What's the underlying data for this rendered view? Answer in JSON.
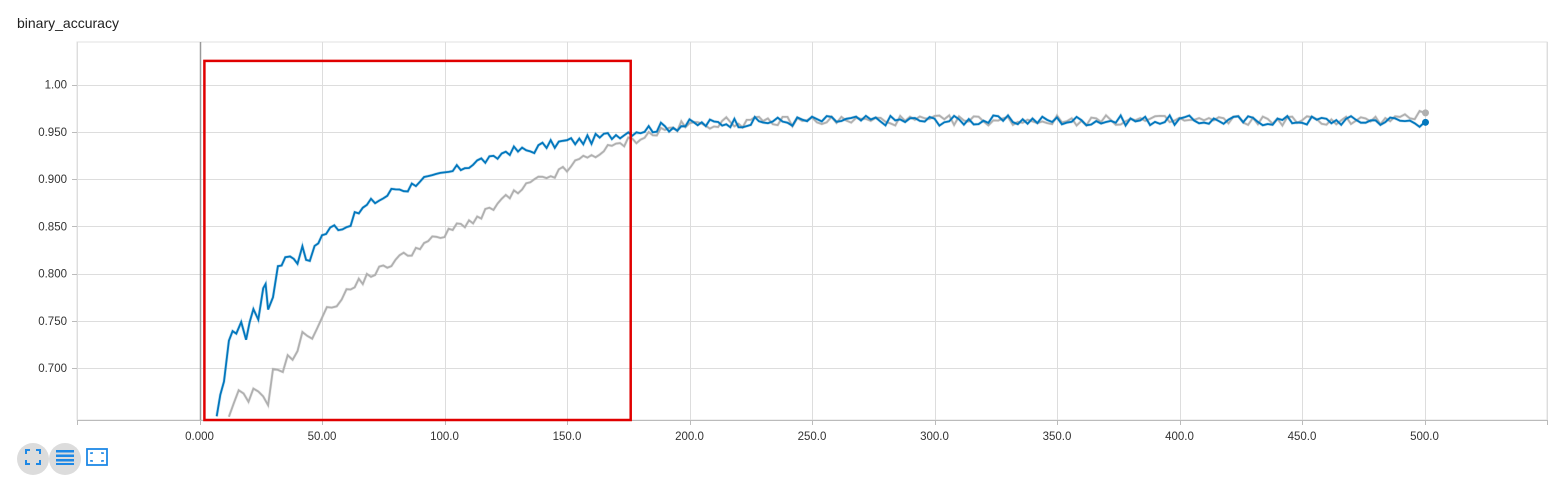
{
  "chart_data": {
    "type": "line",
    "title": "binary_accuracy",
    "xlim": [
      -50,
      550
    ],
    "ylim": [
      0.645,
      1.045
    ],
    "x_ticks": [
      0,
      50,
      100,
      150,
      200,
      250,
      300,
      350,
      400,
      450,
      500
    ],
    "x_tick_labels": [
      "0.000",
      "50.00",
      "100.0",
      "150.0",
      "200.0",
      "250.0",
      "300.0",
      "350.0",
      "400.0",
      "450.0",
      "500.0"
    ],
    "y_ticks": [
      0.7,
      0.75,
      0.8,
      0.85,
      0.9,
      0.95,
      1.0
    ],
    "y_tick_labels": [
      "0.700",
      "0.750",
      "0.800",
      "0.850",
      "0.900",
      "0.950",
      "1.00"
    ],
    "grid": true,
    "legend": "none",
    "series": [
      {
        "color": "#0277bd",
        "points": [
          [
            7,
            0.645
          ],
          [
            10,
            0.69
          ],
          [
            12,
            0.73
          ],
          [
            15,
            0.74
          ],
          [
            17,
            0.75
          ],
          [
            19,
            0.73
          ],
          [
            22,
            0.765
          ],
          [
            24,
            0.755
          ],
          [
            26,
            0.78
          ],
          [
            27,
            0.79
          ],
          [
            28,
            0.765
          ],
          [
            30,
            0.775
          ],
          [
            32,
            0.81
          ],
          [
            35,
            0.815
          ],
          [
            37,
            0.82
          ],
          [
            40,
            0.815
          ],
          [
            42,
            0.825
          ],
          [
            45,
            0.81
          ],
          [
            47,
            0.83
          ],
          [
            50,
            0.84
          ],
          [
            55,
            0.85
          ],
          [
            60,
            0.85
          ],
          [
            65,
            0.865
          ],
          [
            70,
            0.875
          ],
          [
            75,
            0.88
          ],
          [
            80,
            0.89
          ],
          [
            85,
            0.89
          ],
          [
            90,
            0.9
          ],
          [
            95,
            0.9
          ],
          [
            100,
            0.905
          ],
          [
            105,
            0.91
          ],
          [
            110,
            0.915
          ],
          [
            115,
            0.92
          ],
          [
            120,
            0.92
          ],
          [
            125,
            0.93
          ],
          [
            130,
            0.93
          ],
          [
            135,
            0.93
          ],
          [
            140,
            0.935
          ],
          [
            145,
            0.937
          ],
          [
            150,
            0.94
          ],
          [
            155,
            0.94
          ],
          [
            160,
            0.942
          ],
          [
            165,
            0.945
          ],
          [
            170,
            0.947
          ],
          [
            175,
            0.95
          ],
          [
            180,
            0.952
          ],
          [
            185,
            0.954
          ],
          [
            190,
            0.955
          ],
          [
            195,
            0.956
          ],
          [
            200,
            0.958
          ],
          [
            205,
            0.958
          ],
          [
            210,
            0.959
          ],
          [
            215,
            0.96
          ],
          [
            220,
            0.96
          ],
          [
            225,
            0.96
          ],
          [
            230,
            0.961
          ],
          [
            240,
            0.961
          ],
          [
            250,
            0.962
          ],
          [
            260,
            0.962
          ],
          [
            270,
            0.962
          ],
          [
            280,
            0.962
          ],
          [
            290,
            0.962
          ],
          [
            300,
            0.962
          ],
          [
            310,
            0.962
          ],
          [
            320,
            0.962
          ],
          [
            330,
            0.962
          ],
          [
            340,
            0.962
          ],
          [
            350,
            0.962
          ],
          [
            360,
            0.962
          ],
          [
            370,
            0.962
          ],
          [
            380,
            0.962
          ],
          [
            390,
            0.962
          ],
          [
            400,
            0.962
          ],
          [
            410,
            0.962
          ],
          [
            420,
            0.962
          ],
          [
            430,
            0.962
          ],
          [
            440,
            0.962
          ],
          [
            450,
            0.962
          ],
          [
            460,
            0.962
          ],
          [
            470,
            0.962
          ],
          [
            480,
            0.962
          ],
          [
            490,
            0.962
          ],
          [
            500,
            0.96
          ]
        ],
        "end_value": 0.96
      },
      {
        "color": "#b0b0b0",
        "points": [
          [
            12,
            0.645
          ],
          [
            14,
            0.66
          ],
          [
            16,
            0.672
          ],
          [
            18,
            0.675
          ],
          [
            20,
            0.66
          ],
          [
            22,
            0.675
          ],
          [
            24,
            0.675
          ],
          [
            26,
            0.672
          ],
          [
            28,
            0.665
          ],
          [
            30,
            0.695
          ],
          [
            32,
            0.7
          ],
          [
            34,
            0.7
          ],
          [
            36,
            0.71
          ],
          [
            38,
            0.71
          ],
          [
            40,
            0.72
          ],
          [
            42,
            0.735
          ],
          [
            44,
            0.73
          ],
          [
            46,
            0.735
          ],
          [
            48,
            0.745
          ],
          [
            50,
            0.755
          ],
          [
            52,
            0.76
          ],
          [
            54,
            0.765
          ],
          [
            56,
            0.77
          ],
          [
            58,
            0.775
          ],
          [
            60,
            0.78
          ],
          [
            65,
            0.79
          ],
          [
            70,
            0.8
          ],
          [
            75,
            0.805
          ],
          [
            80,
            0.815
          ],
          [
            85,
            0.82
          ],
          [
            90,
            0.83
          ],
          [
            95,
            0.835
          ],
          [
            100,
            0.84
          ],
          [
            105,
            0.85
          ],
          [
            110,
            0.855
          ],
          [
            115,
            0.86
          ],
          [
            120,
            0.87
          ],
          [
            125,
            0.88
          ],
          [
            130,
            0.885
          ],
          [
            135,
            0.895
          ],
          [
            140,
            0.9
          ],
          [
            145,
            0.905
          ],
          [
            150,
            0.91
          ],
          [
            155,
            0.92
          ],
          [
            160,
            0.925
          ],
          [
            165,
            0.93
          ],
          [
            170,
            0.935
          ],
          [
            175,
            0.94
          ],
          [
            180,
            0.944
          ],
          [
            185,
            0.948
          ],
          [
            190,
            0.952
          ],
          [
            195,
            0.955
          ],
          [
            200,
            0.957
          ],
          [
            205,
            0.958
          ],
          [
            210,
            0.959
          ],
          [
            215,
            0.96
          ],
          [
            220,
            0.96
          ],
          [
            225,
            0.96
          ],
          [
            230,
            0.961
          ],
          [
            240,
            0.961
          ],
          [
            250,
            0.962
          ],
          [
            260,
            0.962
          ],
          [
            270,
            0.962
          ],
          [
            280,
            0.962
          ],
          [
            290,
            0.962
          ],
          [
            300,
            0.962
          ],
          [
            310,
            0.962
          ],
          [
            320,
            0.962
          ],
          [
            330,
            0.962
          ],
          [
            340,
            0.962
          ],
          [
            350,
            0.962
          ],
          [
            360,
            0.962
          ],
          [
            370,
            0.962
          ],
          [
            380,
            0.962
          ],
          [
            390,
            0.962
          ],
          [
            400,
            0.962
          ],
          [
            410,
            0.962
          ],
          [
            420,
            0.962
          ],
          [
            430,
            0.962
          ],
          [
            440,
            0.962
          ],
          [
            450,
            0.962
          ],
          [
            460,
            0.962
          ],
          [
            470,
            0.962
          ],
          [
            480,
            0.962
          ],
          [
            490,
            0.962
          ],
          [
            500,
            0.97
          ]
        ],
        "end_value": 0.97
      }
    ],
    "annotations": [
      {
        "type": "rectangle",
        "color": "#e00000",
        "x_range": [
          2,
          176
        ],
        "y_range": [
          0.645,
          1.025
        ]
      }
    ]
  },
  "toolbar": {
    "icons": [
      "fullscreen-icon",
      "data-table-icon",
      "fit-domain-icon"
    ],
    "accent": "#1e88e5"
  }
}
